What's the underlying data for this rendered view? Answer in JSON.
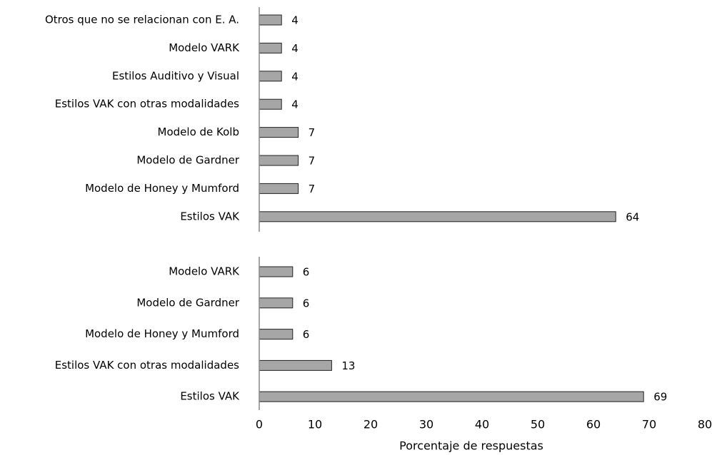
{
  "chart_data": [
    {
      "type": "barh",
      "categories": [
        "Otros que no se relacionan con E. A.",
        "Modelo VARK",
        "Estilos Auditivo y Visual",
        "Estilos VAK con otras modalidades",
        "Modelo de Kolb",
        "Modelo de Gardner",
        "Modelo de Honey y Mumford",
        "Estilos VAK"
      ],
      "values": [
        4,
        4,
        4,
        4,
        7,
        7,
        7,
        64
      ],
      "color": "#a6a6a6",
      "xlim": [
        0,
        80
      ]
    },
    {
      "type": "barh",
      "categories": [
        "Modelo VARK",
        "Modelo de Gardner",
        "Modelo de Honey y Mumford",
        "Estilos VAK con otras modalidades",
        "Estilos VAK"
      ],
      "values": [
        6,
        6,
        6,
        13,
        69
      ],
      "color": "#a6a6a6",
      "xlim": [
        0,
        80
      ],
      "xticks": [
        0,
        10,
        20,
        30,
        40,
        50,
        60,
        70,
        80
      ],
      "xlabel": "Porcentaje de respuestas"
    }
  ]
}
